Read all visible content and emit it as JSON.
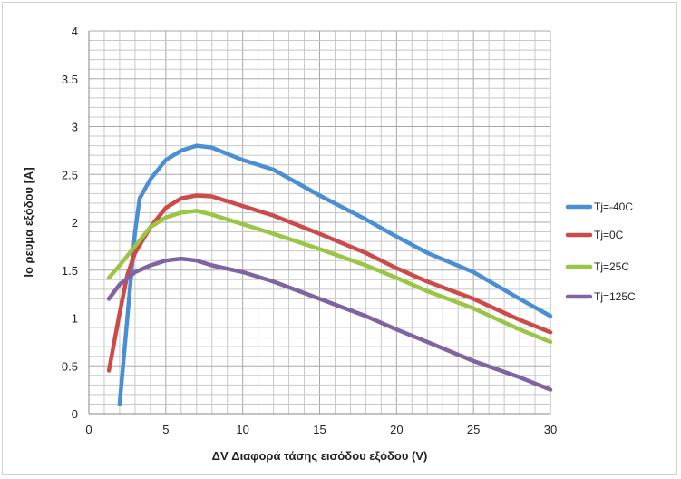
{
  "chart_data": {
    "type": "line",
    "xlabel": "ΔV Διαφορά τάσης εισόδου εξόδου (V)",
    "ylabel": "Io ρευμα εξόδου [A]",
    "xlim": [
      0,
      30
    ],
    "ylim": [
      0,
      4
    ],
    "x_ticks": [
      "0",
      "5",
      "10",
      "15",
      "20",
      "25",
      "30"
    ],
    "y_ticks": [
      "0",
      "0.5",
      "1",
      "1.5",
      "2",
      "2.5",
      "3",
      "3.5",
      "4"
    ],
    "grid": true,
    "legend_position": "right",
    "series": [
      {
        "name": "Tj=-40C",
        "color": "#4a8fd4",
        "points": [
          [
            2,
            0.1
          ],
          [
            2.5,
            1.0
          ],
          [
            3,
            1.9
          ],
          [
            3.3,
            2.25
          ],
          [
            4,
            2.45
          ],
          [
            5,
            2.65
          ],
          [
            6,
            2.75
          ],
          [
            7,
            2.8
          ],
          [
            8,
            2.78
          ],
          [
            10,
            2.65
          ],
          [
            12,
            2.55
          ],
          [
            15,
            2.28
          ],
          [
            18,
            2.03
          ],
          [
            20,
            1.85
          ],
          [
            22,
            1.68
          ],
          [
            25,
            1.48
          ],
          [
            28,
            1.2
          ],
          [
            30,
            1.02
          ]
        ]
      },
      {
        "name": "Tj=0C",
        "color": "#cc4a47",
        "points": [
          [
            1.3,
            0.45
          ],
          [
            2,
            1.05
          ],
          [
            2.5,
            1.45
          ],
          [
            3,
            1.68
          ],
          [
            4,
            1.95
          ],
          [
            5,
            2.15
          ],
          [
            6,
            2.25
          ],
          [
            7,
            2.28
          ],
          [
            8,
            2.27
          ],
          [
            10,
            2.17
          ],
          [
            12,
            2.07
          ],
          [
            15,
            1.88
          ],
          [
            18,
            1.68
          ],
          [
            20,
            1.52
          ],
          [
            22,
            1.38
          ],
          [
            25,
            1.2
          ],
          [
            28,
            0.98
          ],
          [
            30,
            0.85
          ]
        ]
      },
      {
        "name": "Tj=25C",
        "color": "#9bc545",
        "points": [
          [
            1.3,
            1.42
          ],
          [
            2,
            1.55
          ],
          [
            3,
            1.75
          ],
          [
            4,
            1.95
          ],
          [
            5,
            2.05
          ],
          [
            6,
            2.1
          ],
          [
            7,
            2.12
          ],
          [
            8,
            2.08
          ],
          [
            10,
            1.98
          ],
          [
            12,
            1.88
          ],
          [
            15,
            1.72
          ],
          [
            18,
            1.55
          ],
          [
            20,
            1.42
          ],
          [
            22,
            1.28
          ],
          [
            25,
            1.1
          ],
          [
            28,
            0.88
          ],
          [
            30,
            0.75
          ]
        ]
      },
      {
        "name": "Tj=125C",
        "color": "#8064a2",
        "points": [
          [
            1.3,
            1.2
          ],
          [
            2,
            1.35
          ],
          [
            3,
            1.48
          ],
          [
            4,
            1.55
          ],
          [
            5,
            1.6
          ],
          [
            6,
            1.62
          ],
          [
            7,
            1.6
          ],
          [
            8,
            1.55
          ],
          [
            10,
            1.48
          ],
          [
            12,
            1.38
          ],
          [
            15,
            1.2
          ],
          [
            18,
            1.02
          ],
          [
            20,
            0.88
          ],
          [
            22,
            0.75
          ],
          [
            25,
            0.55
          ],
          [
            28,
            0.38
          ],
          [
            30,
            0.25
          ]
        ]
      }
    ]
  }
}
